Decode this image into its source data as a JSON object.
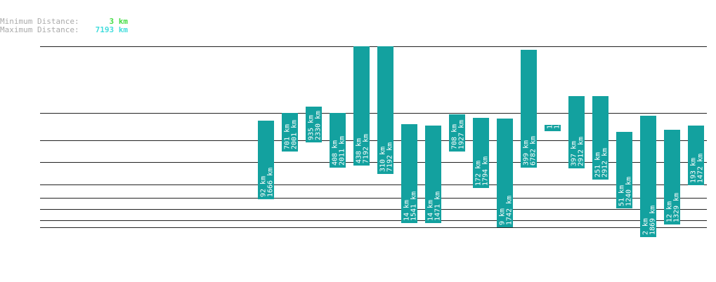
{
  "legend": {
    "min_label": "Minimum Distance:",
    "min_value": "3 km",
    "max_label": "Maximum Distance:",
    "max_value": "7193 km"
  },
  "colors": {
    "bar": "#13a19f",
    "line": "#222222",
    "min_value": "#44dd44",
    "max_value": "#44dddd",
    "legend_label": "#aaaaaa"
  },
  "chart_data": {
    "type": "bar",
    "bars": [
      {
        "low": "92 km",
        "high": "1666 km"
      },
      {
        "low": "701 km",
        "high": "2001 km"
      },
      {
        "low": "935 km",
        "high": "2330 km"
      },
      {
        "low": "408 km",
        "high": "2011 km"
      },
      {
        "low": "438 km",
        "high": "7192 km"
      },
      {
        "low": "310 km",
        "high": "7192 km"
      },
      {
        "low": "14 km",
        "high": "1541 km"
      },
      {
        "low": "14 km",
        "high": "1471 km"
      },
      {
        "low": "708 km",
        "high": "1927 km"
      },
      {
        "low": "172 km",
        "high": "1794 km"
      },
      {
        "low": "9 km",
        "high": "1742 km"
      },
      {
        "low": "399 km",
        "high": "6782 km"
      },
      {
        "low": "1",
        "high": "1"
      },
      {
        "low": "397 km",
        "high": "2912 km"
      },
      {
        "low": "251 km",
        "high": "2912 km"
      },
      {
        "low": "51 km",
        "high": "1240 km"
      },
      {
        "low": "2 km",
        "high": "1869 km"
      },
      {
        "low": "12 km",
        "high": "1329 km"
      },
      {
        "low": "193 km",
        "high": "1472 km"
      }
    ]
  }
}
